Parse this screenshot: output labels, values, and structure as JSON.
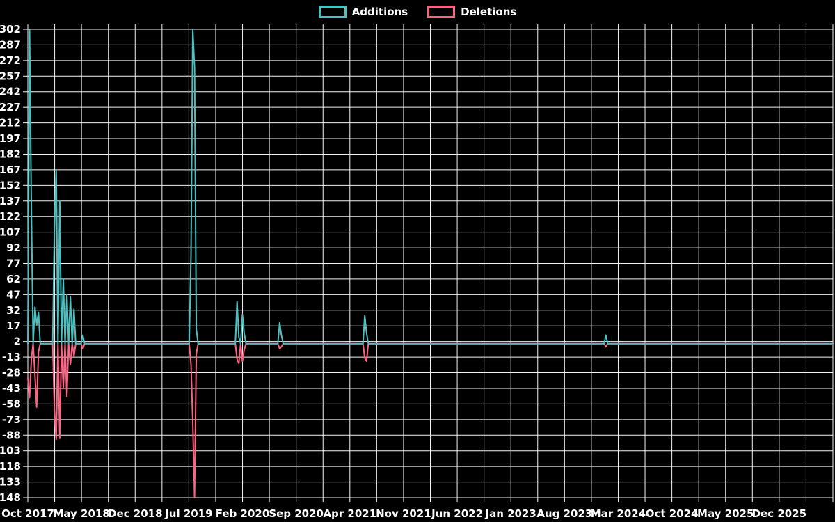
{
  "legend": {
    "items": [
      {
        "label": "Additions",
        "color": "#4bc0c0"
      },
      {
        "label": "Deletions",
        "color": "#ff6384"
      }
    ]
  },
  "chart_data": {
    "type": "line",
    "title": "",
    "background_color": "#000000",
    "grid_color": "#f2f2f2",
    "text_color": "#ffffff",
    "legend_position": "top",
    "grid": true,
    "series": [
      {
        "name": "Additions",
        "color": "#4bc0c0"
      },
      {
        "name": "Deletions",
        "color": "#ff6384"
      }
    ],
    "y_axis": {
      "min": -148,
      "max": 302,
      "step": 15,
      "tick_labels": [
        302,
        287,
        272,
        257,
        242,
        227,
        212,
        197,
        182,
        167,
        152,
        137,
        122,
        107,
        92,
        77,
        62,
        47,
        32,
        17,
        2,
        -13,
        -28,
        -43,
        -58,
        -73,
        -88,
        -103,
        -118,
        -133,
        -148
      ]
    },
    "x_axis": {
      "tick_labels": [
        "Oct 2017",
        "May 2018",
        "Dec 2018",
        "Jul 2019",
        "Feb 2020",
        "Sep 2020",
        "Apr 2021",
        "Nov 2021",
        "Jun 2022",
        "Jan 2023",
        "Aug 2023",
        "Mar 2024",
        "Oct 2024",
        "May 2025",
        "Dec 2025"
      ]
    },
    "baseline_value": 0,
    "weeks_total": 454,
    "events": [
      {
        "week": 0,
        "additions": 0,
        "deletions": -33
      },
      {
        "week": 1,
        "additions": 302,
        "deletions": -52
      },
      {
        "week": 2,
        "additions": 129,
        "deletions": -15
      },
      {
        "week": 4,
        "additions": 35,
        "deletions": -30
      },
      {
        "week": 5,
        "additions": 18,
        "deletions": -61
      },
      {
        "week": 6,
        "additions": 30,
        "deletions": -8
      },
      {
        "week": 15,
        "additions": 110,
        "deletions": -63
      },
      {
        "week": 16,
        "additions": 167,
        "deletions": -92
      },
      {
        "week": 18,
        "additions": 137,
        "deletions": -91
      },
      {
        "week": 20,
        "additions": 62,
        "deletions": -43
      },
      {
        "week": 22,
        "additions": 47,
        "deletions": -51
      },
      {
        "week": 24,
        "additions": 45,
        "deletions": -20
      },
      {
        "week": 26,
        "additions": 33,
        "deletions": -12
      },
      {
        "week": 31,
        "additions": 8,
        "deletions": -5
      },
      {
        "week": 92,
        "additions": 85,
        "deletions": -20
      },
      {
        "week": 93,
        "additions": 302,
        "deletions": -75
      },
      {
        "week": 94,
        "additions": 265,
        "deletions": -148
      },
      {
        "week": 95,
        "additions": 14,
        "deletions": -10
      },
      {
        "week": 118,
        "additions": 40,
        "deletions": -15
      },
      {
        "week": 119,
        "additions": 6,
        "deletions": -19
      },
      {
        "week": 121,
        "additions": 28,
        "deletions": -17
      },
      {
        "week": 122,
        "additions": 10,
        "deletions": -6
      },
      {
        "week": 142,
        "additions": 20,
        "deletions": -5
      },
      {
        "week": 143,
        "additions": 8,
        "deletions": -3
      },
      {
        "week": 190,
        "additions": 27,
        "deletions": -14
      },
      {
        "week": 191,
        "additions": 10,
        "deletions": -17
      },
      {
        "week": 326,
        "additions": 8,
        "deletions": -3
      }
    ]
  }
}
